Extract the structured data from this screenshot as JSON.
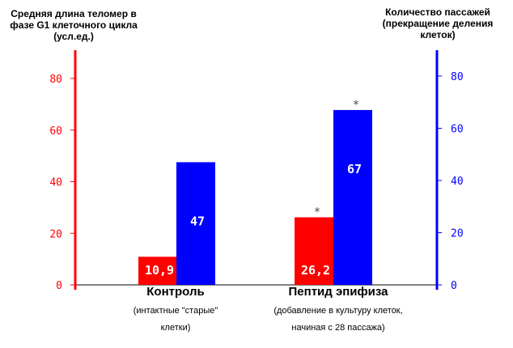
{
  "chart_data": {
    "type": "bar",
    "y_left_label": "Средняя длина теломер в фазе G1 клеточного цикла (усл.ед.)",
    "y_right_label": "Количество пассажей (прекращение деления клеток)",
    "categories": [
      {
        "name": "Контроль",
        "note_lines": [
          "(интактные \"старые\"",
          "клетки)"
        ]
      },
      {
        "name": "Пептид эпифиза",
        "note_lines": [
          "(добавление в культуру клеток,",
          "начиная с 28 пассажа)"
        ]
      }
    ],
    "series": [
      {
        "axis": "left",
        "color": "#ff0000",
        "values": [
          10.9,
          26.2
        ],
        "labels": [
          "10,9",
          "26,2"
        ]
      },
      {
        "axis": "right",
        "color": "#0000ff",
        "values": [
          47,
          67
        ],
        "labels": [
          "47",
          "67"
        ]
      }
    ],
    "significance_marks": [
      {
        "series": 0,
        "category": 1,
        "symbol": "*"
      },
      {
        "series": 1,
        "category": 1,
        "symbol": "*"
      }
    ],
    "y_left": {
      "ylim": [
        0,
        80
      ],
      "ticks": [
        0,
        20,
        40,
        60,
        80
      ],
      "color": "#ff0000"
    },
    "y_right": {
      "ylim": [
        0,
        80
      ],
      "ticks": [
        0,
        20,
        40,
        60,
        80
      ],
      "color": "#0000ff"
    },
    "grid": false,
    "legend": "none"
  }
}
